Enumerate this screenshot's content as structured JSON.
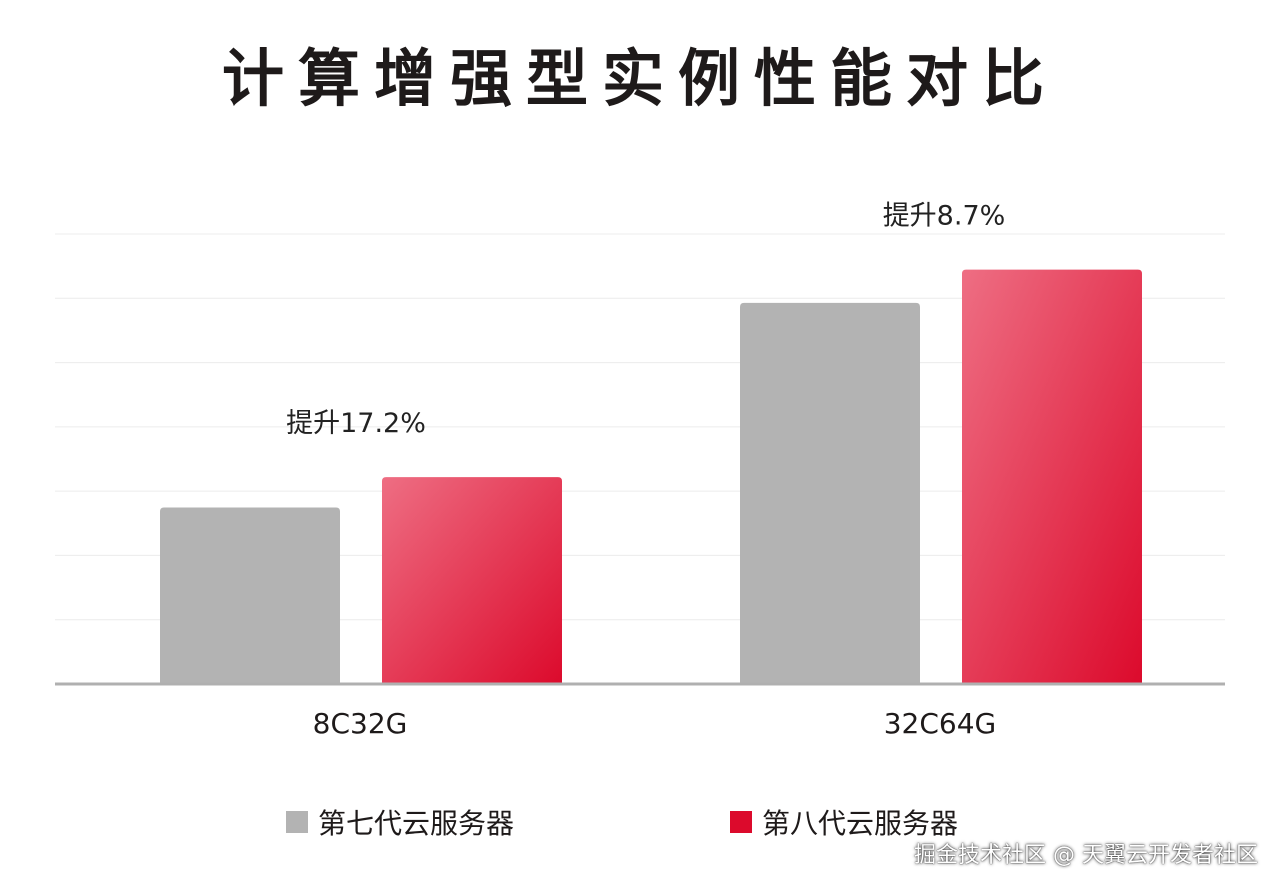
{
  "watermark": "掘金技术社区 @ 天翼云开发者社区",
  "colors": {
    "gen7": "#b3b3b3",
    "gen8_top": "#ee6e83",
    "gen8_bottom": "#dc0a2c",
    "grid": "#ececec",
    "axis": "#b0b0b0"
  },
  "chart_data": {
    "type": "bar",
    "title": "计算增强型实例性能对比",
    "categories": [
      "8C32G",
      "32C64G"
    ],
    "series": [
      {
        "name": "第七代云服务器",
        "values": [
          1.0,
          2.16
        ]
      },
      {
        "name": "第八代云服务器",
        "values": [
          1.172,
          2.348
        ]
      }
    ],
    "annotations": [
      "提升17.2%",
      "提升8.7%"
    ],
    "ylim": [
      0,
      2.55
    ],
    "grid": true,
    "legend": "bottom"
  }
}
